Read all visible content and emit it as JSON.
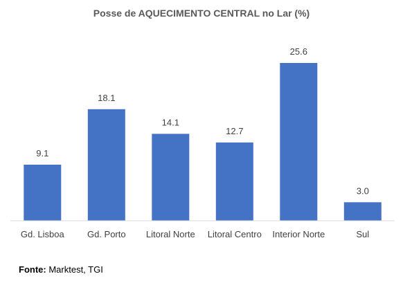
{
  "chart_data": {
    "type": "bar",
    "title": "Posse de AQUECIMENTO CENTRAL no Lar (%)",
    "categories": [
      "Gd. Lisboa",
      "Gd. Porto",
      "Litoral Norte",
      "Litoral Centro",
      "Interior Norte",
      "Sul"
    ],
    "values": [
      9.1,
      18.1,
      14.1,
      12.7,
      25.6,
      3.0
    ],
    "data_labels": [
      "9.1",
      "18.1",
      "14.1",
      "12.7",
      "25.6",
      "3.0"
    ],
    "xlabel": "",
    "ylabel": "",
    "ylim": [
      0,
      25.6
    ],
    "grid": false,
    "bar_color": "#4472C4"
  },
  "source": {
    "label": "Fonte:",
    "text": "Marktest, TGI"
  }
}
